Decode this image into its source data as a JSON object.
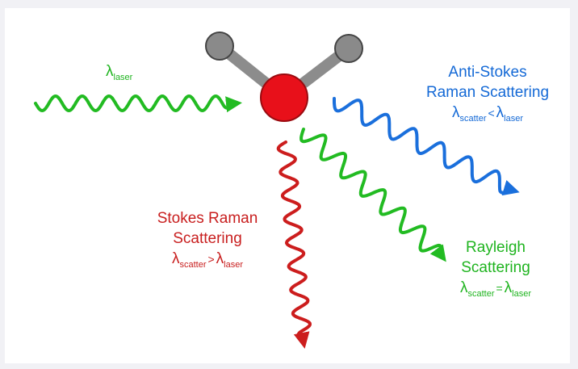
{
  "colors": {
    "laser": "#22bb22",
    "rayleigh": "#22bb22",
    "anti_stokes": "#1a6fdc",
    "stokes": "#cc1d1d",
    "oxygen_atom": "#e8101a",
    "hydrogen_atom": "#8a8a8a",
    "bond": "#8c8c8c"
  },
  "laser": {
    "symbol": "λ",
    "subscript": "laser"
  },
  "anti_stokes": {
    "line1": "Anti-Stokes",
    "line2": "Raman Scattering",
    "symbol_left": "λ",
    "sub_left": "scatter",
    "operator": "<",
    "symbol_right": "λ",
    "sub_right": "laser"
  },
  "stokes": {
    "line1": "Stokes Raman",
    "line2": "Scattering",
    "symbol_left": "λ",
    "sub_left": "scatter",
    "operator": ">",
    "symbol_right": "λ",
    "sub_right": "laser"
  },
  "rayleigh": {
    "line1": "Rayleigh",
    "line2": "Scattering",
    "symbol_left": "λ",
    "sub_left": "scatter",
    "operator": "=",
    "symbol_right": "λ",
    "sub_right": "laser"
  },
  "molecule": {
    "center_atom": "oxygen",
    "outer_atoms": [
      "hydrogen",
      "hydrogen"
    ]
  }
}
